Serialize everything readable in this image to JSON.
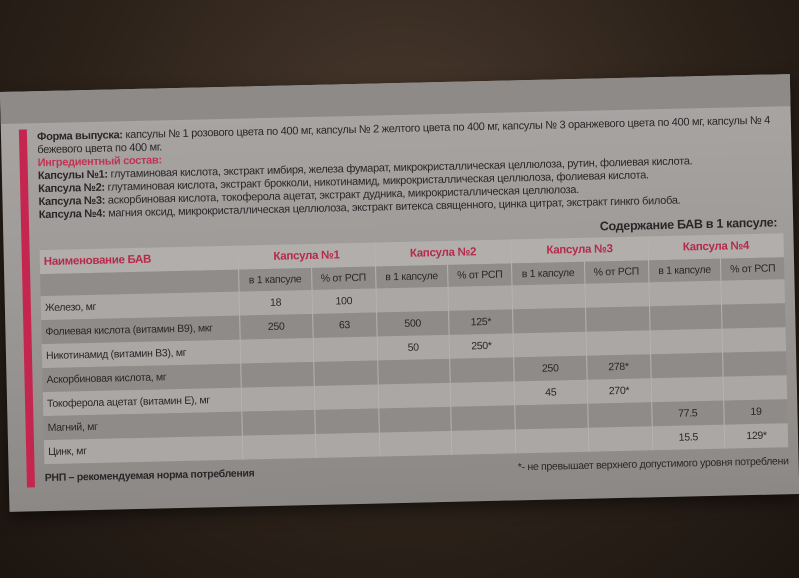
{
  "release_form": {
    "label": "Форма выпуска:",
    "text": "капсулы № 1 розового цвета по 400 мг, капсулы № 2 желтого цвета по 400 мг, капсулы № 3 оранжевого цвета по 400 мг, капсулы № 4 бежевого цвета по 400 мг."
  },
  "ingredients": {
    "title": "Ингредиентный состав:",
    "items": [
      {
        "label": "Капсулы №1:",
        "text": "глутаминовая кислота, экстракт имбиря, железа фумарат, микрокристаллическая целлюлоза, рутин, фолиевая кислота."
      },
      {
        "label": "Капсула №2:",
        "text": "глутаминовая кислота, экстракт брокколи, никотинамид, микрокристаллическая целлюлоза, фолиевая кислота."
      },
      {
        "label": "Капсула №3:",
        "text": "аскорбиновая кислота, токоферола ацетат, экстракт дудника, микрокристаллическая целлюлоза."
      },
      {
        "label": "Капсула №4:",
        "text": "магния оксид, микрокристаллическая целлюлоза, экстракт витекса священного, цинка цитрат, экстракт гинкго билоба."
      }
    ]
  },
  "table": {
    "title": "Содержание БАВ в 1 капсуле:",
    "name_header": "Наименование БАВ",
    "capsules": [
      "Капсула №1",
      "Капсула №2",
      "Капсула №3",
      "Капсула №4"
    ],
    "sub": [
      "в 1 капсуле",
      "% от РСП"
    ],
    "rows": [
      [
        "Железо, мг",
        "18",
        "100",
        "",
        "",
        "",
        "",
        "",
        ""
      ],
      [
        "Фолиевая кислота (витамин В9), мкг",
        "250",
        "63",
        "500",
        "125*",
        "",
        "",
        "",
        ""
      ],
      [
        "Никотинамид (витамин В3), мг",
        "",
        "",
        "50",
        "250*",
        "",
        "",
        "",
        ""
      ],
      [
        "Аскорбиновая кислота, мг",
        "",
        "",
        "",
        "",
        "250",
        "278*",
        "",
        ""
      ],
      [
        "Токоферола ацетат (витамин Е), мг",
        "",
        "",
        "",
        "",
        "45",
        "270*",
        "",
        ""
      ],
      [
        "Магний, мг",
        "",
        "",
        "",
        "",
        "",
        "",
        "77.5",
        "19"
      ],
      [
        "Цинк, мг",
        "",
        "",
        "",
        "",
        "",
        "",
        "15.5",
        "129*"
      ]
    ]
  },
  "footer": {
    "left": "РНП – рекомендуемая норма потребления",
    "right": "*- не превышает верхнего допустимого уровня потреблени"
  }
}
